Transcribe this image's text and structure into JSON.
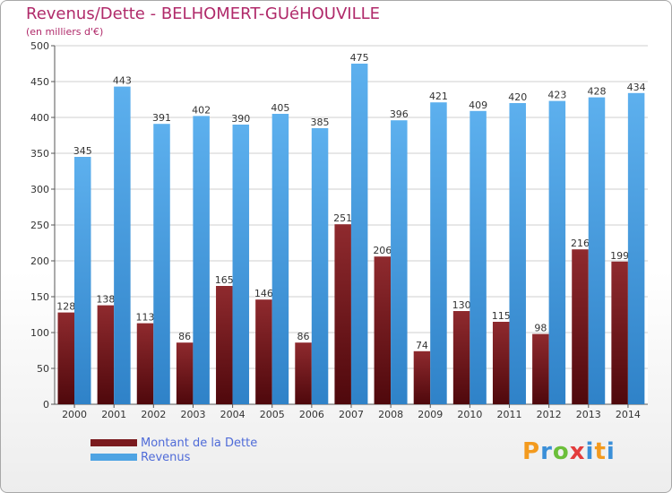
{
  "chart_data": {
    "type": "bar",
    "title": "Revenus/Dette - BELHOMERT-GUéHOUVILLE",
    "subtitle": "(en milliers d'€)",
    "xlabel": "",
    "ylabel": "",
    "ylim": [
      0,
      500
    ],
    "yticks": [
      "0",
      "50",
      "100",
      "150",
      "200",
      "250",
      "300",
      "350",
      "400",
      "450",
      "500"
    ],
    "grid": true,
    "categories": [
      "2000",
      "2001",
      "2002",
      "2003",
      "2004",
      "2005",
      "2006",
      "2007",
      "2008",
      "2009",
      "2010",
      "2011",
      "2012",
      "2013",
      "2014"
    ],
    "series": [
      {
        "name": "Montant de la Dette",
        "color": "#7a1a1e",
        "values": [
          128,
          138,
          113,
          86,
          165,
          146,
          86,
          251,
          206,
          74,
          130,
          115,
          98,
          216,
          199
        ],
        "labels": [
          "128",
          "138",
          "113",
          "86",
          "165",
          "146",
          "86",
          "251",
          "206",
          "74",
          "130",
          "115",
          "98",
          "216",
          "199"
        ]
      },
      {
        "name": "Revenus",
        "color": "#4ea3e3",
        "values": [
          345,
          443,
          391,
          402,
          390,
          405,
          385,
          475,
          396,
          421,
          409,
          420,
          423,
          428,
          434
        ],
        "labels": [
          "345",
          "443",
          "391",
          "402",
          "390",
          "405",
          "385",
          "475",
          "396",
          "421",
          "409",
          "420",
          "423",
          "428",
          "434"
        ]
      }
    ]
  },
  "legend": {
    "dette_label": "Montant de la Dette",
    "revenus_label": "Revenus",
    "dette_color": "#7a1a1e",
    "revenus_color": "#4ea3e3"
  },
  "logo": {
    "text": "Proxiti"
  }
}
